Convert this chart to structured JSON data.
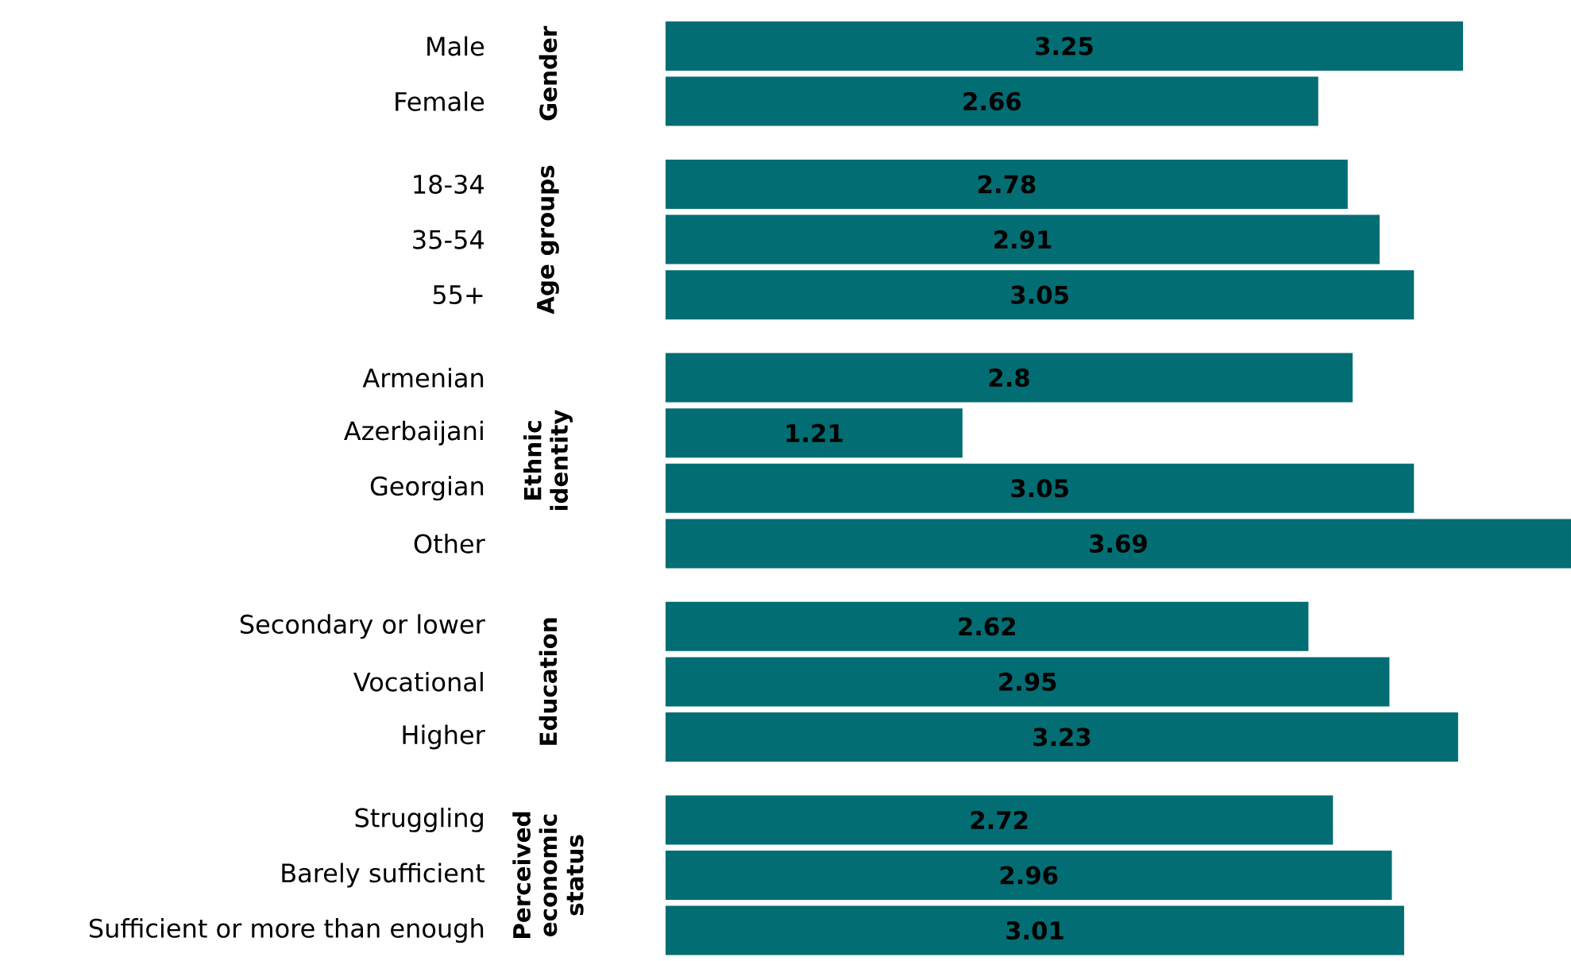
{
  "chart_data": {
    "type": "bar",
    "orientation": "horizontal",
    "color": "#036d74",
    "data_labels": true,
    "categories": [
      "Male",
      "Female",
      null,
      "18-34",
      "35-54",
      "55+",
      null,
      "Armenian",
      "Azerbaijani",
      "Georgian",
      "Other",
      null,
      "Secondary or lower",
      "Vocational",
      "Higher",
      null,
      "Struggling",
      "Barely sufficient",
      "Sufficient or more than enough"
    ],
    "values": [
      3.25,
      2.66,
      null,
      2.78,
      2.91,
      3.05,
      null,
      2.8,
      1.21,
      3.05,
      3.69,
      null,
      2.62,
      2.95,
      3.23,
      null,
      2.72,
      2.96,
      3.01
    ],
    "xlim": [
      0,
      3.69
    ],
    "annotations": [
      "Gender",
      "Age groups",
      "Ethnic identity",
      "Education",
      "Perceived economic status"
    ]
  }
}
